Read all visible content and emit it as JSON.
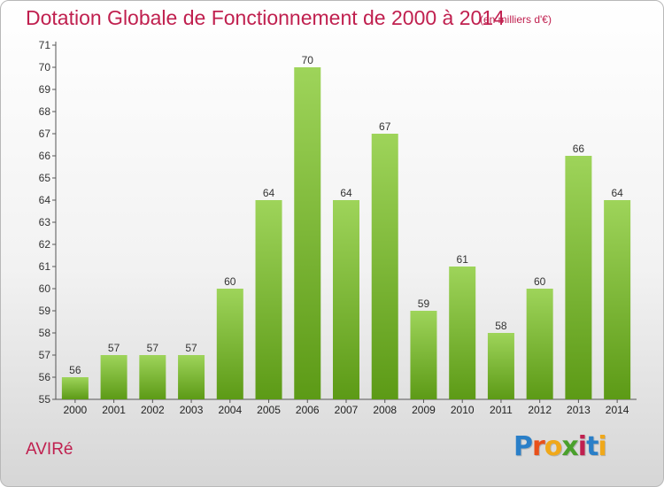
{
  "title": "Dotation Globale de Fonctionnement de 2000 à 2014",
  "unit": "(en milliers d'€)",
  "commune": "AVIRé",
  "logo": {
    "letters": [
      "P",
      "r",
      "o",
      "x",
      "i",
      "t",
      "i"
    ],
    "colors": [
      "#2a7fc8",
      "#e8501a",
      "#f0a81a",
      "#4aa02c",
      "#c0204f",
      "#2a7fc8",
      "#f0a81a"
    ]
  },
  "colors": {
    "bar_top": "#9ed45a",
    "bar_bottom": "#5c9a16",
    "text_accent": "#c0204f"
  },
  "chart_data": {
    "type": "bar",
    "categories": [
      "2000",
      "2001",
      "2002",
      "2003",
      "2004",
      "2005",
      "2006",
      "2007",
      "2008",
      "2009",
      "2010",
      "2011",
      "2012",
      "2013",
      "2014"
    ],
    "values": [
      56,
      57,
      57,
      57,
      60,
      64,
      70,
      64,
      67,
      59,
      61,
      58,
      60,
      66,
      64
    ],
    "ylim": [
      55,
      71
    ],
    "yticks": [
      55,
      56,
      57,
      58,
      59,
      60,
      61,
      62,
      63,
      64,
      65,
      66,
      67,
      68,
      69,
      70,
      71
    ],
    "grid": false,
    "legend": "none"
  }
}
